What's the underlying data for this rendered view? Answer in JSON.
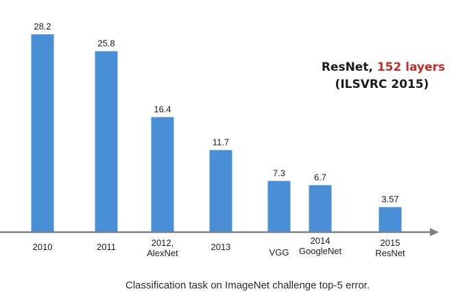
{
  "chart_data": {
    "type": "bar",
    "categories": [
      [
        "2010"
      ],
      [
        "2011"
      ],
      [
        "2012,",
        "AlexNet"
      ],
      [
        "2013"
      ],
      [
        "VGG"
      ],
      [
        "2014",
        "GoogleNet"
      ],
      [
        "2015",
        "ResNet"
      ]
    ],
    "values": [
      28.2,
      25.8,
      16.4,
      11.7,
      7.3,
      6.7,
      3.57
    ],
    "value_labels": [
      "28.2",
      "25.8",
      "16.4",
      "11.7",
      "7.3",
      "6.7",
      "3.57"
    ],
    "ylim": [
      0,
      28.2
    ],
    "grid": false,
    "legend": "none",
    "bar_color": "#4a8fd6",
    "axis_color": "#7f7f7f",
    "caption": "Classification task on ImageNet challenge top-5 error.",
    "annotation": {
      "line1_prefix": "ResNet, ",
      "line1_highlight": "152 layers",
      "line2": "(ILSVRC 2015)",
      "text_color": "#1a1a1a",
      "highlight_color": "#c0302a"
    }
  }
}
